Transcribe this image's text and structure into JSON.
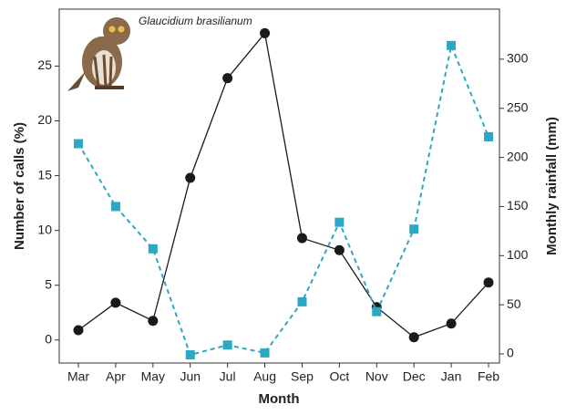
{
  "chart_data": {
    "type": "line",
    "annotation": "Glaucidium brasilianum",
    "xlabel": "Month",
    "ylabel": "Number of calls (%)",
    "y2label": "Monthly rainfall (mm)",
    "categories": [
      "Mar",
      "Apr",
      "May",
      "Jun",
      "Jul",
      "Aug",
      "Sep",
      "Oct",
      "Nov",
      "Dec",
      "Jan",
      "Feb"
    ],
    "series": [
      {
        "color": "#1a1a1a",
        "line_style": "solid",
        "marker": "circle",
        "values": [
          0.9,
          3.4,
          1.75,
          14.8,
          23.9,
          28,
          9.3,
          8.2,
          3,
          0.25,
          1.5,
          5.25
        ]
      },
      {
        "color": "#2aa8c4",
        "line_style": "dashed",
        "marker": "square",
        "axis": "y2",
        "values": [
          214,
          150,
          107,
          -1,
          9,
          1,
          53,
          134,
          43,
          127,
          314,
          221
        ]
      }
    ],
    "ylim": [
      -2.1,
      30.2
    ],
    "yticks": [
      0,
      5,
      10,
      15,
      20,
      25
    ],
    "y2lim": [
      -9.3,
      351
    ],
    "y2ticks": [
      0,
      50,
      100,
      150,
      200,
      250,
      300
    ]
  }
}
